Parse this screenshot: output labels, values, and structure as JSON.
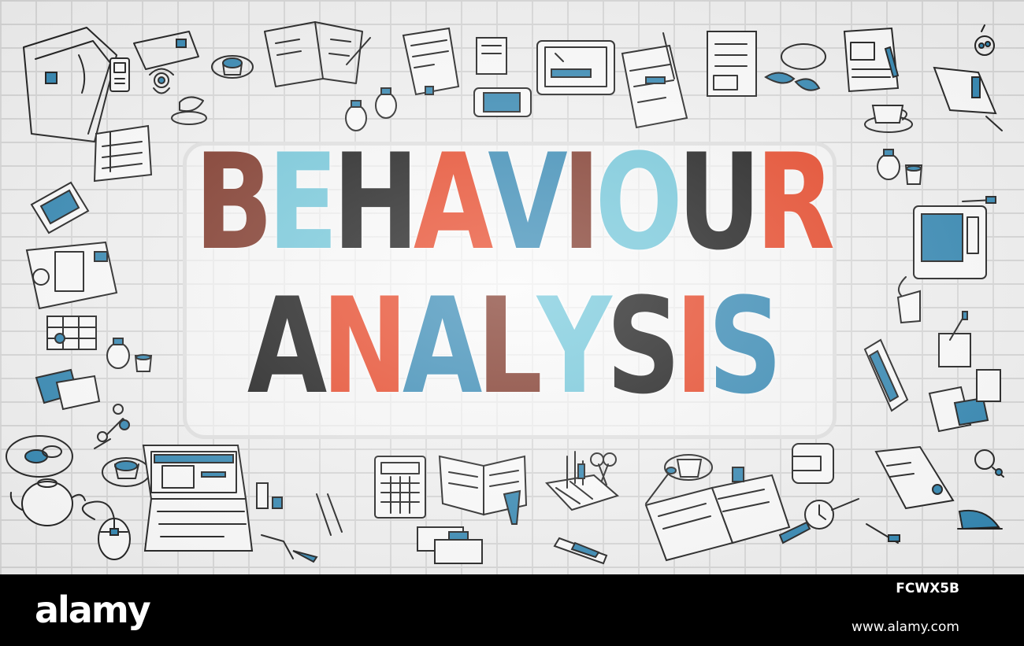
{
  "headline": {
    "line1": [
      {
        "ch": "B",
        "color": "#7a2e1f"
      },
      {
        "ch": "E",
        "color": "#6fc7db"
      },
      {
        "ch": "H",
        "color": "#111111"
      },
      {
        "ch": "A",
        "color": "#e8401f"
      },
      {
        "ch": "V",
        "color": "#2f86b3"
      },
      {
        "ch": "I",
        "color": "#7a2e1f"
      },
      {
        "ch": "O",
        "color": "#6fc7db"
      },
      {
        "ch": "U",
        "color": "#111111"
      },
      {
        "ch": "R",
        "color": "#e8401f"
      }
    ],
    "line2": [
      {
        "ch": "A",
        "color": "#111111"
      },
      {
        "ch": "N",
        "color": "#e8401f"
      },
      {
        "ch": "A",
        "color": "#2f86b3"
      },
      {
        "ch": "L",
        "color": "#7a2e1f"
      },
      {
        "ch": "Y",
        "color": "#6fc7db"
      },
      {
        "ch": "S",
        "color": "#111111"
      },
      {
        "ch": "I",
        "color": "#e8401f"
      },
      {
        "ch": "S",
        "color": "#2f86b3"
      }
    ]
  },
  "watermark": {
    "logo": "alamy",
    "image_id": "FCWX5B",
    "url": "www.alamy.com"
  },
  "colors": {
    "wall": "#f4f4f4",
    "mortar": "#dcdcdc",
    "doodle_accent": "#2f86b3",
    "doodle_line": "#1b1b1b"
  },
  "doodle_icons": [
    "folder-icon",
    "phone-icon",
    "flower-pot-icon",
    "coffee-cup-icon",
    "notebook-icon",
    "tablet-icon",
    "document-icon",
    "pencil-icon",
    "glasses-icon",
    "clipboard-icon",
    "calendar-icon",
    "bottle-icon",
    "keys-icon",
    "plate-icon",
    "laptop-icon",
    "calculator-icon",
    "open-book-icon",
    "scissors-icon",
    "stapler-icon",
    "wristwatch-icon",
    "mouse-icon",
    "usb-stick-icon",
    "paper-sheet-icon",
    "pen-icon",
    "wallet-icon",
    "magnifier-icon",
    "map-pin-icon",
    "teapot-icon",
    "business-card-icon",
    "spoon-icon"
  ]
}
